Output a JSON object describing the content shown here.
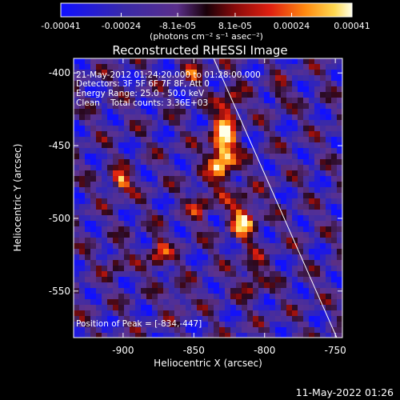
{
  "colorbar": {
    "ticks": [
      "-0.00041",
      "-0.00024",
      "-8.1e-05",
      "8.1e-05",
      "0.00024",
      "0.00041"
    ],
    "tick_values": [
      -0.00041,
      -0.00024,
      -8.1e-05,
      8.1e-05,
      0.00024,
      0.00041
    ],
    "range": [
      -0.00041,
      0.00041
    ],
    "unit": "(photons cm⁻² s⁻¹ asec⁻²)"
  },
  "chart_data": {
    "type": "heatmap",
    "title": "Reconstructed RHESSI Image",
    "xlabel": "Heliocentric X (arcsec)",
    "ylabel": "Heliocentric Y (arcsec)",
    "xlim": [
      -935,
      -745
    ],
    "ylim": [
      -582,
      -390
    ],
    "x_ticks": [
      -900,
      -850,
      -800,
      -750
    ],
    "y_ticks": [
      -400,
      -450,
      -500,
      -550
    ],
    "x_tick_labels": [
      "-900",
      "-850",
      "-800",
      "-750"
    ],
    "y_tick_labels": [
      "-400",
      "-450",
      "-500",
      "-550"
    ],
    "limb_line": [
      [
        -836,
        -390
      ],
      [
        -749,
        -582
      ]
    ],
    "peak": [
      -834,
      -447
    ],
    "annotations": {
      "time": "21-May-2012 01:24:20.000 to 01:28:00.000",
      "detectors": "Detectors: 3F 5F 6F 7F 8F, Att 0",
      "energy": "Energy Range: 25.0 - 50.0 keV",
      "clean": "Clean    Total counts: 3.36E+03",
      "peak": "Position of Peak = [-834,-447]"
    }
  },
  "footer": {
    "timestamp": "11-May-2022 01:26"
  }
}
